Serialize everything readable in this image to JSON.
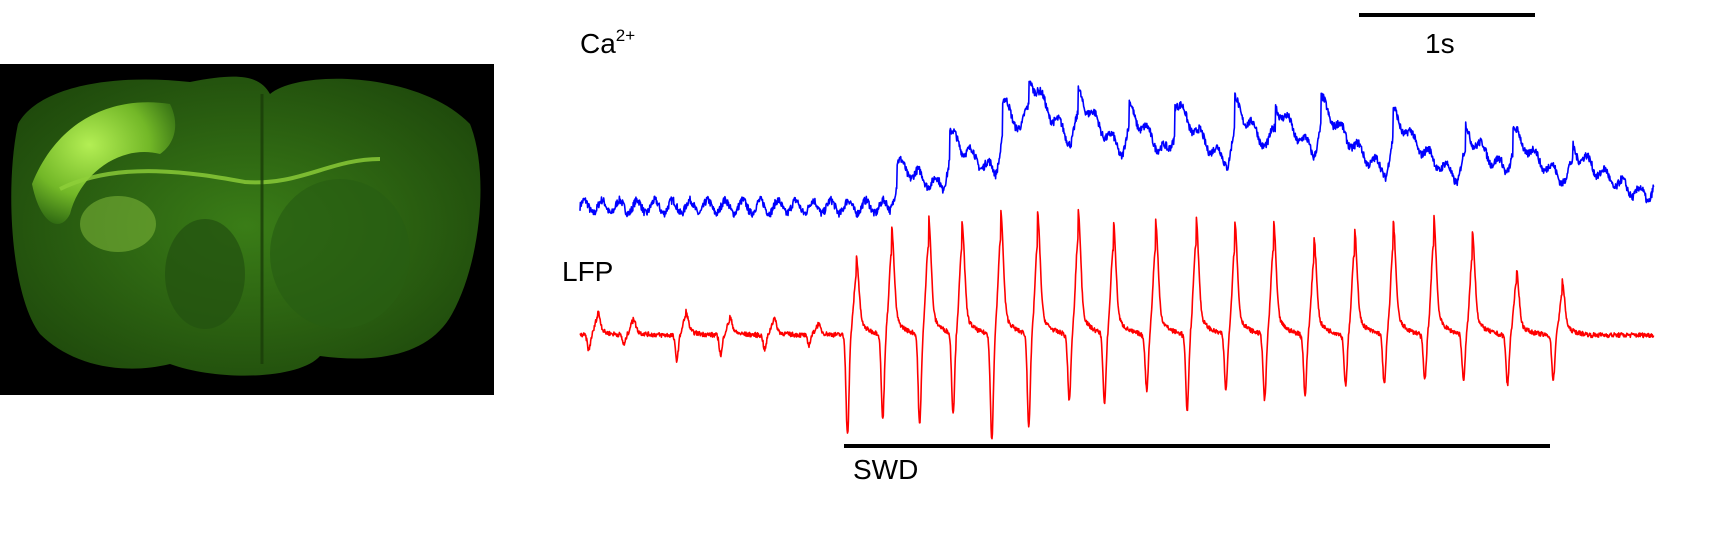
{
  "chart_data": {
    "type": "line",
    "panel_image": "coronal-brain-section-fluorescence",
    "colors": {
      "ca": "#0000ff",
      "lfp": "#ff0000",
      "image_bg": "#000000",
      "tissue": "#2f6a12",
      "bright": "#b7ff4a"
    },
    "series": [
      {
        "name": "Ca2+",
        "label_base": "Ca",
        "label_sup": "2+",
        "color": "#0000ff",
        "baseline": 0.1,
        "events": [
          [
            0.3,
            0.55
          ],
          [
            0.6,
            0.7
          ],
          [
            0.9,
            0.95
          ],
          [
            1.05,
            0.8
          ],
          [
            1.33,
            0.7
          ],
          [
            1.62,
            0.62
          ],
          [
            1.88,
            0.75
          ],
          [
            2.22,
            0.82
          ],
          [
            2.45,
            0.62
          ],
          [
            2.71,
            0.72
          ],
          [
            3.12,
            0.8
          ],
          [
            3.53,
            0.65
          ],
          [
            3.8,
            0.55
          ],
          [
            4.14,
            0.45
          ],
          [
            4.61,
            0.42
          ]
        ]
      },
      {
        "name": "LFP",
        "label": "LFP",
        "color": "#ff0000",
        "baseline": 0,
        "pre_spikes": [
          [
            -1.45,
            0.2,
            0.15
          ],
          [
            -1.25,
            0.15,
            0.1
          ],
          [
            -0.95,
            0.2,
            0.25
          ],
          [
            -0.7,
            0.15,
            0.2
          ],
          [
            -0.45,
            0.15,
            0.15
          ],
          [
            -0.2,
            0.1,
            0.1
          ]
        ],
        "swd_spikes": [
          [
            0.02,
            0.65,
            1.0
          ],
          [
            0.22,
            0.9,
            0.85
          ],
          [
            0.43,
            1.0,
            0.9
          ],
          [
            0.62,
            0.95,
            0.8
          ],
          [
            0.84,
            1.05,
            1.05
          ],
          [
            1.05,
            1.0,
            0.9
          ],
          [
            1.28,
            1.05,
            0.65
          ],
          [
            1.48,
            0.95,
            0.7
          ],
          [
            1.72,
            0.95,
            0.55
          ],
          [
            1.95,
            1.0,
            0.75
          ],
          [
            2.17,
            0.95,
            0.55
          ],
          [
            2.39,
            0.95,
            0.65
          ],
          [
            2.62,
            0.8,
            0.6
          ],
          [
            2.85,
            0.9,
            0.5
          ],
          [
            3.07,
            0.95,
            0.5
          ],
          [
            3.3,
            1.0,
            0.45
          ],
          [
            3.52,
            0.85,
            0.45
          ],
          [
            3.77,
            0.55,
            0.5
          ],
          [
            4.03,
            0.45,
            0.45
          ]
        ]
      }
    ],
    "xlim": [
      -1.5,
      4.6
    ],
    "scale_bar": {
      "length_s": 1,
      "label": "1s"
    },
    "swd": {
      "start_s": 0,
      "end_s": 4.5,
      "label": "SWD"
    }
  }
}
